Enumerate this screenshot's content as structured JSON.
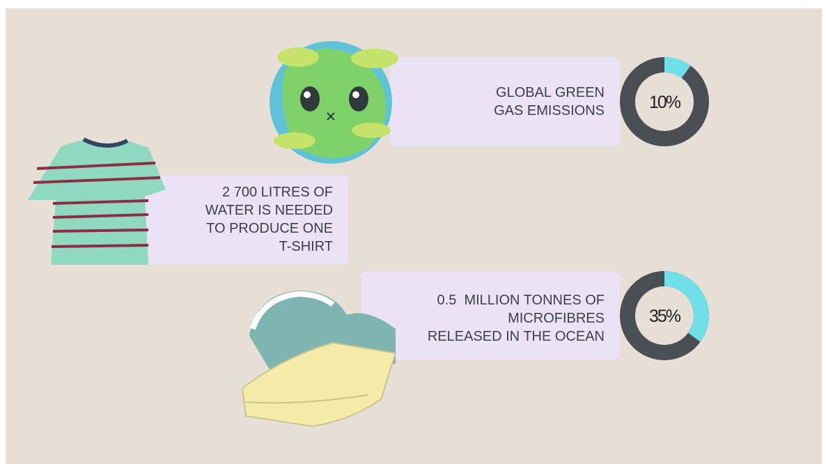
{
  "stats": [
    {
      "lines": [
        "GLOBAL GREEN",
        "GAS EMISSIONS"
      ],
      "percent": {
        "value": 10,
        "label": "10%"
      }
    },
    {
      "lines": [
        "2 700 LITRES OF",
        "WATER IS NEEDED",
        "TO PRODUCE ONE",
        "T-SHIRT"
      ]
    },
    {
      "lines": [
        "0.5  MILLION TONNES OF",
        "MICROFIBRES",
        "RELEASED IN THE OCEAN"
      ],
      "percent": {
        "value": 35,
        "label": "35%"
      }
    }
  ]
}
